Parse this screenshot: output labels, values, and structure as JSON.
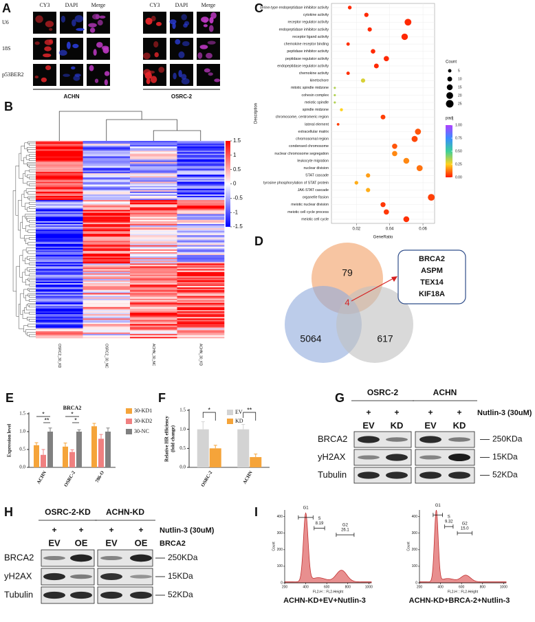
{
  "panels": {
    "A": {
      "label": "A",
      "columns": [
        "CY3",
        "DAPI",
        "Merge",
        "CY3",
        "DAPI",
        "Merge"
      ],
      "rows": [
        "U6",
        "18S",
        "p53BER2"
      ],
      "groups": [
        "ACHN",
        "OSRC-2"
      ]
    },
    "B": {
      "label": "B",
      "columns": [
        "OSRC2_30_KD",
        "OSRC2_30_NC",
        "ACHN_30_NC",
        "ACHN_30_KD"
      ],
      "colorbar_ticks": [
        1.5,
        1,
        0.5,
        0,
        -0.5,
        -1,
        -1.5
      ]
    },
    "D": {
      "label": "D",
      "sets": [
        79,
        5064,
        617
      ],
      "intersection": 4,
      "genes": [
        "BRCA2",
        "ASPM",
        "TEX14",
        "KIF18A"
      ]
    },
    "G": {
      "label": "G",
      "groups": [
        "OSRC-2",
        "ACHN"
      ],
      "treatment": "Nutlin-3 (30uM)",
      "signs": [
        "+",
        "+",
        "+",
        "+"
      ],
      "lanes": [
        "EV",
        "KD",
        "EV",
        "KD"
      ],
      "proteins": [
        "BRCA2",
        "yH2AX",
        "Tubulin"
      ],
      "sizes": [
        "250KDa",
        "15KDa",
        "52KDa"
      ]
    },
    "H": {
      "label": "H",
      "groups": [
        "OSRC-2-KD",
        "ACHN-KD"
      ],
      "treatment": "Nutlin-3 (30uM)",
      "construct": "BRCA2",
      "signs": [
        "+",
        "+",
        "+",
        "+"
      ],
      "lanes": [
        "EV",
        "OE",
        "EV",
        "OE"
      ],
      "proteins": [
        "BRCA2",
        "yH2AX",
        "Tubulin"
      ],
      "sizes": [
        "250KDa",
        "15KDa",
        "52KDa"
      ]
    }
  },
  "chart_data": [
    {
      "type": "dot",
      "label": "C",
      "x_label": "GeneRatio",
      "y_label": "Description",
      "categories": [
        "serine-type endopeptidase inhibitor activity",
        "cytokine activity",
        "receptor regulator activity",
        "endopeptidase inhibitor activity",
        "receptor ligand activity",
        "chemokine receptor binding",
        "peptidase inhibitor activity",
        "peptidase regulator activity",
        "endopeptidase regulator activity",
        "chemokine activity",
        "kinetochore",
        "mitotic spindle midzone",
        "cohesin complex",
        "meiotic spindle",
        "spindle midzone",
        "chromosome, centromeric region",
        "lateral element",
        "extracellular matrix",
        "chromosomal region",
        "condensed chromosome",
        "nuclear chromosome segregation",
        "leukocyte migration",
        "nuclear division",
        "STAT cascade",
        "tyrosine phosphorylation of STAT protein",
        "JAK-STAT cascade",
        "organelle fission",
        "meiotic nuclear division",
        "meiotic cell cycle process",
        "meiotic cell cycle"
      ],
      "values": [
        0.016,
        0.026,
        0.051,
        0.028,
        0.049,
        0.015,
        0.03,
        0.038,
        0.032,
        0.015,
        0.024,
        0.007,
        0.007,
        0.007,
        0.011,
        0.036,
        0.009,
        0.057,
        0.055,
        0.043,
        0.043,
        0.05,
        0.058,
        0.027,
        0.02,
        0.027,
        0.065,
        0.036,
        0.038,
        0.05
      ],
      "sizes": [
        6,
        8,
        20,
        8,
        18,
        5,
        9,
        12,
        10,
        5,
        8,
        2,
        2,
        2,
        4,
        10,
        3,
        16,
        16,
        12,
        12,
        15,
        16,
        8,
        6,
        8,
        20,
        11,
        12,
        15
      ],
      "padj": [
        0.02,
        0.02,
        0.02,
        0.02,
        0.02,
        0.03,
        0.02,
        0.02,
        0.02,
        0.03,
        0.3,
        0.35,
        0.35,
        0.35,
        0.25,
        0.05,
        0.05,
        0.08,
        0.06,
        0.08,
        0.15,
        0.15,
        0.12,
        0.18,
        0.2,
        0.2,
        0.05,
        0.04,
        0.04,
        0.03
      ],
      "xlim": [
        0.005,
        0.067
      ],
      "xticks": [
        0.02,
        0.04,
        0.06
      ],
      "grid": true,
      "size_legend": {
        "title": "Count",
        "ticks": [
          5,
          10,
          15,
          20,
          25
        ]
      },
      "color_legend": {
        "title": "padj",
        "ticks": [
          {
            "value": 1,
            "label": "1.00"
          },
          {
            "value": 0.75,
            "label": "0.75"
          },
          {
            "value": 0.5,
            "label": "0.50"
          },
          {
            "value": 0.25,
            "label": "0.25"
          },
          {
            "value": 0,
            "label": "0.00"
          }
        ],
        "colors": [
          "#ff1a00",
          "#ffd21e",
          "#3ccf9a",
          "#3a8cff",
          "#b040ff"
        ]
      }
    },
    {
      "type": "bar",
      "label": "E",
      "title": "BRCA2",
      "y_label": [
        "Expression level"
      ],
      "categories": [
        "ACHN",
        "OSRC-2",
        "786-O"
      ],
      "series": [
        {
          "name": "30-KD1",
          "color": "#f5a43a",
          "values": [
            0.62,
            0.58,
            1.15
          ],
          "errors": [
            0.07,
            0.1,
            0.08
          ]
        },
        {
          "name": "30-KD2",
          "color": "#f08080",
          "values": [
            0.35,
            0.43,
            0.8
          ],
          "errors": [
            0.15,
            0.06,
            0.12
          ]
        },
        {
          "name": "30-NC",
          "color": "#808080",
          "values": [
            1.0,
            1.0,
            1.0
          ],
          "errors": [
            0.1,
            0.05,
            0.1
          ]
        }
      ],
      "ylim": [
        0,
        1.5
      ],
      "yticks": [
        {
          "value": 0,
          "label": "0.0"
        },
        {
          "value": 0.5,
          "label": "0.5"
        },
        {
          "value": 1,
          "label": "1.0"
        },
        {
          "value": 1.5,
          "label": "1.5"
        }
      ],
      "annotations": [
        "*",
        "**",
        "*",
        "*"
      ]
    },
    {
      "type": "bar",
      "label": "F",
      "y_label": [
        "Relative HR efficiency",
        "(fold change)"
      ],
      "categories": [
        "OSRC-2",
        "ACHN"
      ],
      "series": [
        {
          "name": "EV",
          "color": "#d3d3d3",
          "values": [
            1.0,
            1.0
          ],
          "errors": [
            0.2,
            0.13
          ]
        },
        {
          "name": "KD",
          "color": "#f5a43a",
          "values": [
            0.5,
            0.27
          ],
          "errors": [
            0.08,
            0.08
          ]
        }
      ],
      "ylim": [
        0,
        1.5
      ],
      "yticks": [
        {
          "value": 0,
          "label": "0.0"
        },
        {
          "value": 0.5,
          "label": "0.5"
        },
        {
          "value": 1,
          "label": "1.0"
        },
        {
          "value": 1.5,
          "label": "1.5"
        }
      ],
      "annotations": [
        "*",
        "**"
      ]
    },
    {
      "type": "flow",
      "label": "I",
      "caption": "ACHN-KD+EV+Nutlin-3",
      "x_label": "FL2-H :: FL2-Height",
      "y_label": "Count",
      "xlim": [
        200,
        1024
      ],
      "xticks": [
        200,
        400,
        600,
        800,
        1000
      ],
      "ylim": [
        0,
        440
      ],
      "yticks": [
        0,
        100,
        200,
        300,
        400
      ],
      "gates": [
        {
          "name": "G1"
        },
        {
          "name": "S",
          "value": 8.19
        },
        {
          "name": "G2",
          "value": 26.1
        }
      ]
    },
    {
      "type": "flow",
      "caption": "ACHN-KD+BRCA-2+Nutlin-3",
      "x_label": "FL2-H :: FL2-Height",
      "y_label": "Count",
      "xlim": [
        200,
        1024
      ],
      "xticks": [
        200,
        400,
        600,
        800,
        1000
      ],
      "ylim": [
        0,
        440
      ],
      "yticks": [
        0,
        100,
        200,
        300,
        400
      ],
      "gates": [
        {
          "name": "G1"
        },
        {
          "name": "S",
          "value": 9.32
        },
        {
          "name": "G2",
          "value": 15,
          "value_label": "15.0"
        }
      ]
    }
  ]
}
